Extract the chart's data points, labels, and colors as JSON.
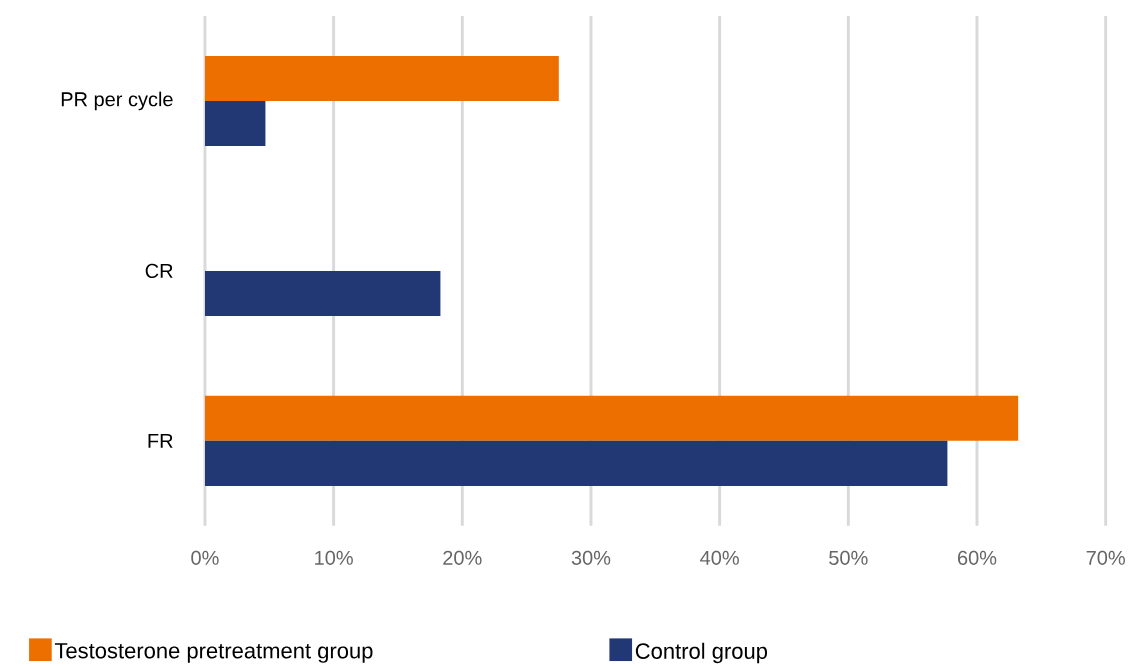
{
  "chart_data": {
    "type": "bar",
    "orientation": "horizontal",
    "categories": [
      "PR per cycle",
      "CR",
      "FR"
    ],
    "series": [
      {
        "name": "Testosterone pretreatment group",
        "color": "#ed6f00",
        "values": [
          27.5,
          null,
          63.2
        ]
      },
      {
        "name": "Control group",
        "color": "#213875",
        "values": [
          4.7,
          18.3,
          57.7
        ]
      }
    ],
    "xlim": [
      0,
      70
    ],
    "xticks": [
      {
        "value": 0,
        "label": "0%"
      },
      {
        "value": 10,
        "label": "10%"
      },
      {
        "value": 20,
        "label": "20%"
      },
      {
        "value": 30,
        "label": "30%"
      },
      {
        "value": 40,
        "label": "40%"
      },
      {
        "value": 50,
        "label": "50%"
      },
      {
        "value": 60,
        "label": "60%"
      },
      {
        "value": 70,
        "label": "70%"
      }
    ],
    "grid": "x",
    "legend": "bottom"
  }
}
